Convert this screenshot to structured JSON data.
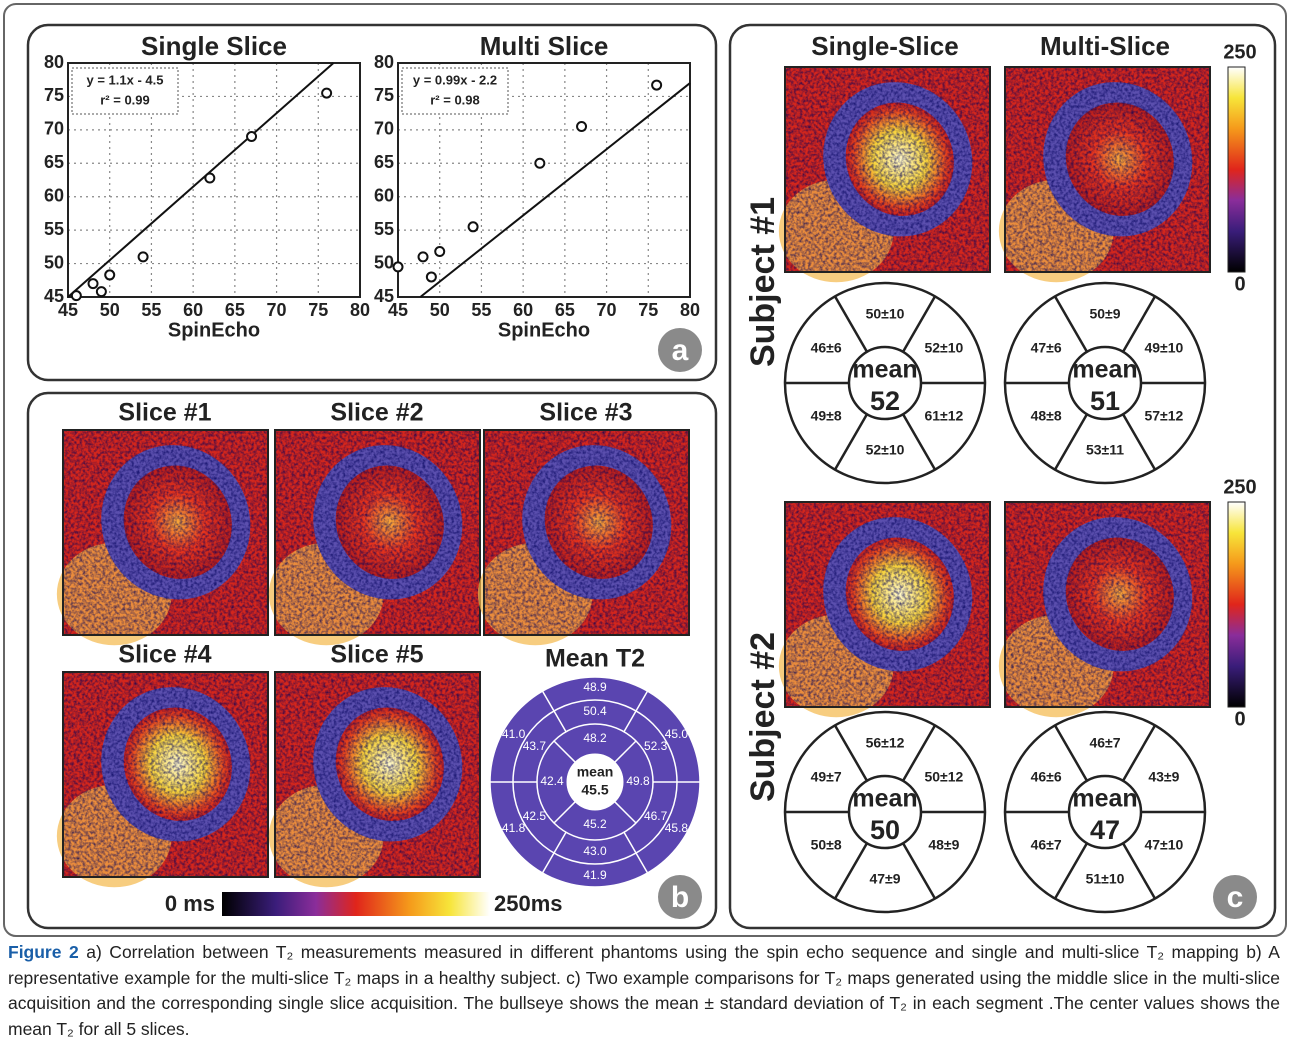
{
  "panel_a": {
    "label": "a",
    "plots": [
      {
        "title": "Single Slice",
        "x_label": "SpinEcho",
        "equation": "y = 1.1x - 4.5",
        "r2": "r² = 0.99",
        "fit": {
          "slope": 1.1,
          "intercept": -4.5
        },
        "xlim": [
          45,
          80
        ],
        "ylim": [
          45,
          80
        ],
        "xticks": [
          45,
          50,
          55,
          60,
          65,
          70,
          75,
          80
        ],
        "yticks": [
          45,
          50,
          55,
          60,
          65,
          70,
          75,
          80
        ],
        "points": {
          "x": [
            46,
            48,
            49,
            50,
            54,
            62,
            67,
            76
          ],
          "y": [
            45.2,
            47,
            45.8,
            48.3,
            51,
            62.8,
            69,
            75.5
          ]
        }
      },
      {
        "title": "Multi Slice",
        "x_label": "SpinEcho",
        "equation": "y = 0.99x - 2.2",
        "r2": "r² = 0.98",
        "fit": {
          "slope": 0.99,
          "intercept": -2.2
        },
        "xlim": [
          45,
          80
        ],
        "ylim": [
          45,
          80
        ],
        "xticks": [
          45,
          50,
          55,
          60,
          65,
          70,
          75,
          80
        ],
        "yticks": [
          45,
          50,
          55,
          60,
          65,
          70,
          75,
          80
        ],
        "points": {
          "x": [
            45,
            48,
            49,
            50,
            54,
            62,
            67,
            76
          ],
          "y": [
            49.5,
            51,
            48,
            51.8,
            55.5,
            65,
            70.5,
            76.7
          ]
        }
      }
    ]
  },
  "panel_b": {
    "label": "b",
    "slices": [
      "Slice #1",
      "Slice #2",
      "Slice #3",
      "Slice #4",
      "Slice #5"
    ],
    "bullseye": {
      "title": "Mean T2",
      "outer": [
        "48.9",
        "45.0",
        "45.8",
        "41.9",
        "41.8",
        "41.0"
      ],
      "middle": [
        "50.4",
        "52.3",
        "46.7",
        "43.0",
        "42.5",
        "43.7"
      ],
      "inner": [
        "48.2",
        "49.8",
        "45.2",
        "42.4"
      ],
      "center_label": "mean",
      "center_value": "45.5"
    },
    "colorbar": {
      "min_label": "0 ms",
      "max_label": "250ms"
    }
  },
  "panel_c": {
    "label": "c",
    "columns": [
      "Single-Slice",
      "Multi-Slice"
    ],
    "subjects": [
      {
        "name": "Subject #1",
        "colorbar": {
          "max_label": "250",
          "min_label": "0"
        },
        "bullseyes": [
          {
            "segments": [
              "50±10",
              "52±10",
              "61±12",
              "52±10",
              "49±8",
              "46±6"
            ],
            "center_label": "mean",
            "center_value": "52"
          },
          {
            "segments": [
              "50±9",
              "49±10",
              "57±12",
              "53±11",
              "48±8",
              "47±6"
            ],
            "center_label": "mean",
            "center_value": "51"
          }
        ]
      },
      {
        "name": "Subject #2",
        "colorbar": {
          "max_label": "250",
          "min_label": "0"
        },
        "bullseyes": [
          {
            "segments": [
              "56±12",
              "50±12",
              "48±9",
              "47±9",
              "50±8",
              "49±7"
            ],
            "center_label": "mean",
            "center_value": "50"
          },
          {
            "segments": [
              "46±7",
              "43±9",
              "47±10",
              "51±10",
              "46±7",
              "46±6"
            ],
            "center_label": "mean",
            "center_value": "47"
          }
        ]
      }
    ]
  },
  "caption": {
    "label": "Figure 2",
    "text": "a) Correlation between T₂ measurements measured in different phantoms using the spin echo sequence and single and multi-slice T₂ mapping b) A representative example for the multi-slice T₂ maps in a healthy subject. c) Two example comparisons for T₂ maps generated using the middle slice in the multi-slice acquisition and the corresponding single slice acquisition. The bullseye shows the mean ± standard deviation of T₂ in each segment .The center values shows the mean T₂ for all 5 slices."
  }
}
